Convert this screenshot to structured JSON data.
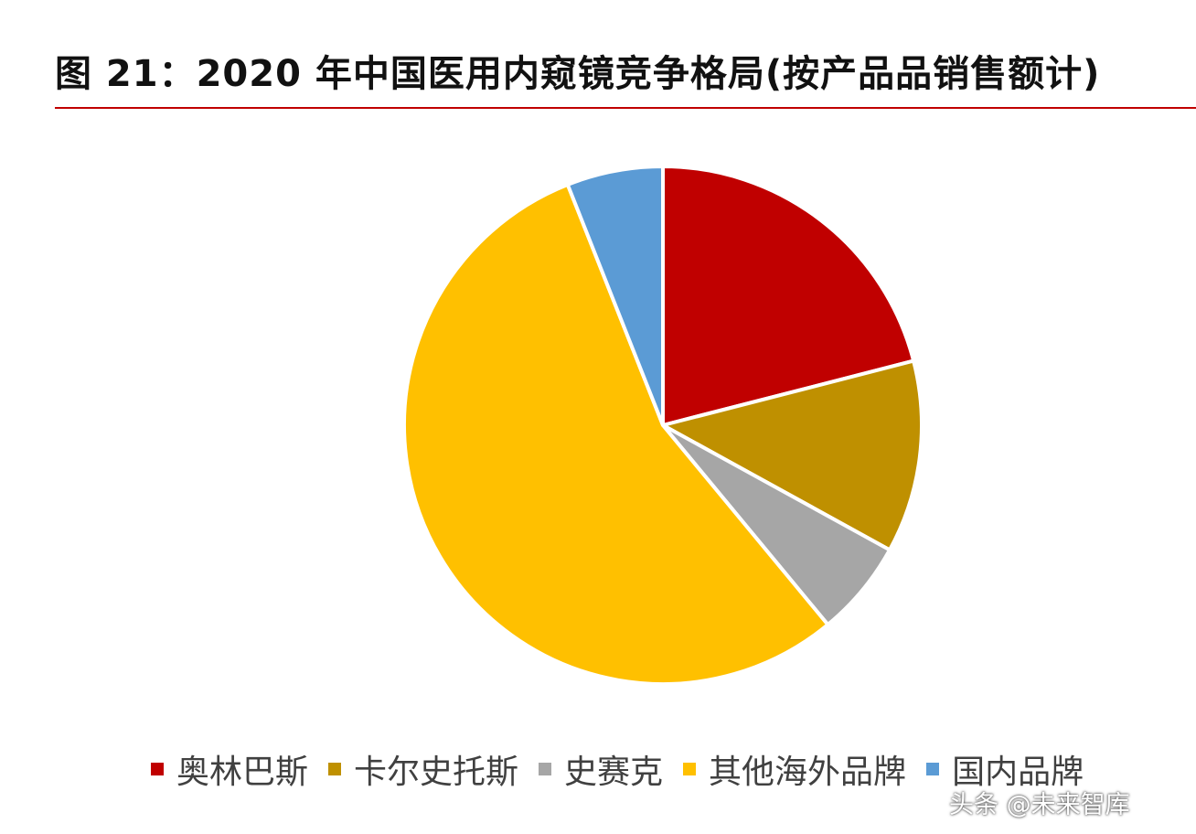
{
  "title": "图 21：2020 年中国医用内窥镜竞争格局(按产品品销售额计)",
  "colors": {
    "title_rule": "#c00000",
    "slice_border": "#ffffff"
  },
  "chart_data": {
    "type": "pie",
    "title": "图 21：2020 年中国医用内窥镜竞争格局(按产品品销售额计)",
    "start": "12 o'clock",
    "direction": "clockwise",
    "categories": [
      "奥林巴斯",
      "卡尔史托斯",
      "史赛克",
      "其他海外品牌",
      "国内品牌"
    ],
    "values": [
      21.0,
      12.0,
      6.0,
      55.0,
      6.0
    ],
    "unit": "%",
    "colors": [
      "#c00000",
      "#bf9000",
      "#a6a6a6",
      "#ffc000",
      "#5b9bd5"
    ],
    "legend_position": "bottom"
  },
  "watermark": "头条 @未来智库"
}
